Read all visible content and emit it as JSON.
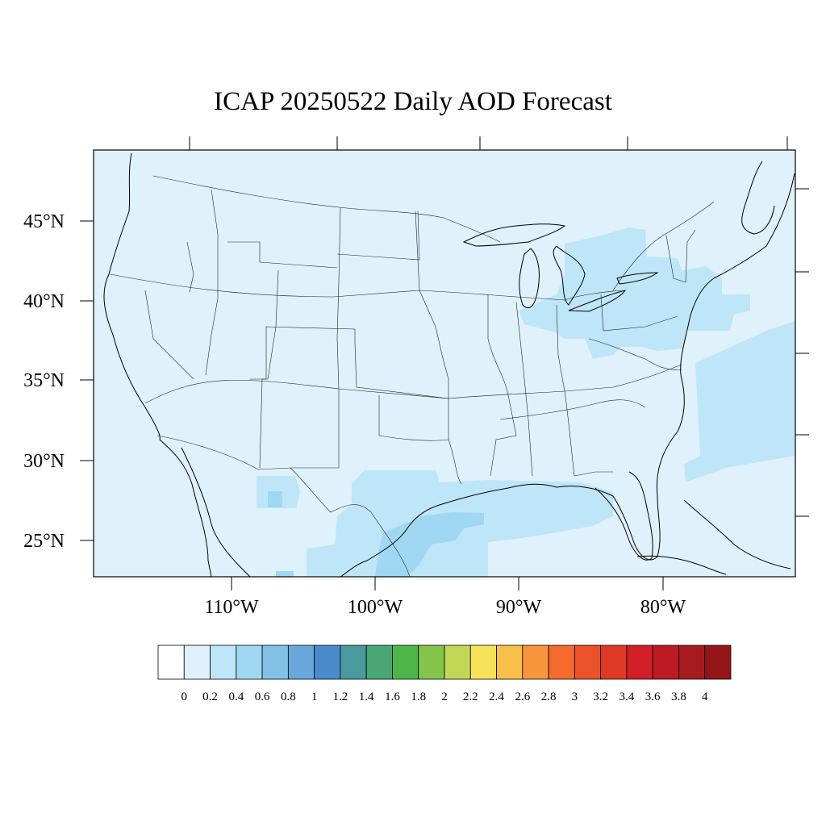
{
  "title": "ICAP 20250522 Daily AOD Forecast",
  "map": {
    "projection": "lambert-conformal",
    "lat_labels": [
      "45°N",
      "40°N",
      "35°N",
      "30°N",
      "25°N"
    ],
    "lon_labels": [
      "110°W",
      "100°W",
      "90°W",
      "80°W"
    ],
    "ocean_color": "#dff1fb",
    "line_color": "#000000"
  },
  "colorbar": {
    "labels": [
      "0",
      "0.2",
      "0.4",
      "0.6",
      "0.8",
      "1",
      "1.2",
      "1.4",
      "1.6",
      "1.8",
      "2",
      "2.2",
      "2.4",
      "2.6",
      "2.8",
      "3",
      "3.2",
      "3.4",
      "3.6",
      "3.8",
      "4"
    ],
    "colors": [
      "#ffffff",
      "#dff1fb",
      "#bfe6f8",
      "#a0d8f3",
      "#84c1e7",
      "#6aa8db",
      "#4a8ccb",
      "#4a9a9e",
      "#48a774",
      "#4cb748",
      "#85c44b",
      "#c2d756",
      "#f7e359",
      "#f8bf4a",
      "#f7963c",
      "#f46b2d",
      "#ec5229",
      "#e03a27",
      "#d21f28",
      "#bc1a24",
      "#a71a20",
      "#931518"
    ]
  },
  "aod_plumes": [
    {
      "region": "Texas / Gulf of Mexico",
      "level": "0.4-0.6"
    },
    {
      "region": "Great Lakes / Ohio Valley",
      "level": "0.2-0.4"
    },
    {
      "region": "Western Atlantic",
      "level": "0.2-0.4"
    },
    {
      "region": "Mexico (Chihuahua)",
      "level": "0.2-0.6"
    }
  ]
}
